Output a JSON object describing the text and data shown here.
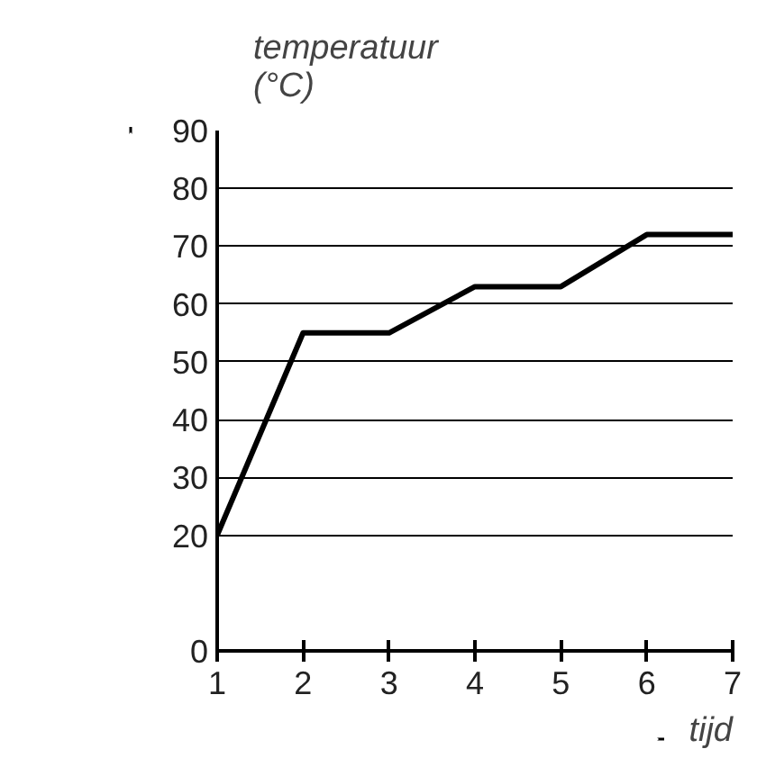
{
  "chart_data": {
    "type": "line",
    "ylabel": "temperatuur\n(°C)",
    "xlabel": "tijd",
    "x": [
      1,
      2,
      3,
      4,
      5,
      6,
      7
    ],
    "series": [
      {
        "color": "#000000",
        "values": [
          20,
          55,
          55,
          63,
          63,
          72,
          72
        ]
      }
    ],
    "xlim": [
      1,
      7
    ],
    "xticks": [
      1,
      2,
      3,
      4,
      5,
      6,
      7
    ],
    "ylim": [
      0,
      90
    ],
    "yticks": [
      0,
      20,
      30,
      40,
      50,
      60,
      70,
      80,
      90
    ],
    "grid": "y",
    "marker": "none",
    "line_style": "solid"
  }
}
